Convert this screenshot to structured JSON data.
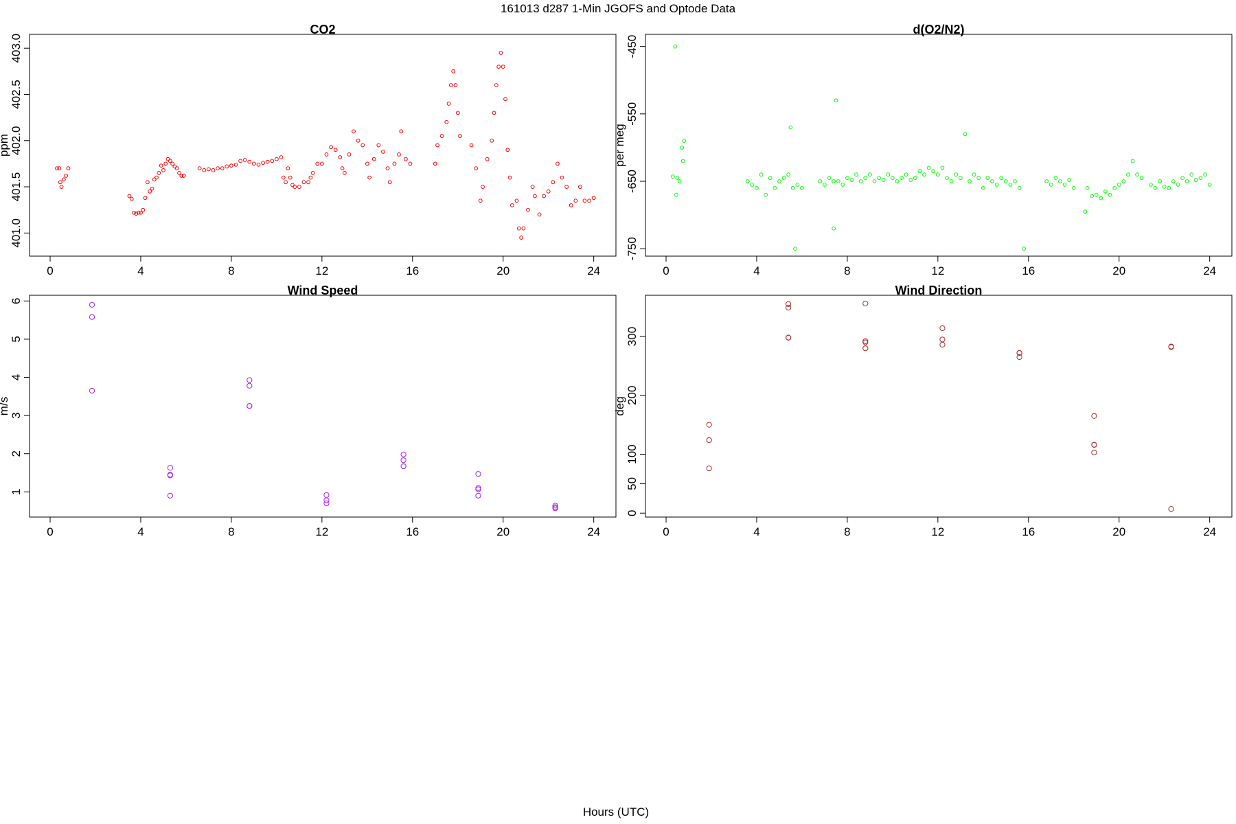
{
  "title": "161013   d287   1-Min  JGOFS and Optode Data",
  "xlabel": "Hours (UTC)",
  "chart_data": [
    {
      "type": "scatter",
      "title": "CO2",
      "ylabel": "ppm",
      "color": "#ff0000",
      "xlim": [
        -0.91,
        24.98
      ],
      "ylim": [
        400.75,
        403.15
      ],
      "xticks": [
        0,
        4,
        8,
        12,
        16,
        20,
        24
      ],
      "yticks": [
        {
          "value": 401,
          "label": "401.0"
        },
        401.5,
        {
          "value": 402,
          "label": "402.0"
        },
        402.5,
        {
          "value": 403,
          "label": "403.0"
        }
      ],
      "x": [
        0.3,
        0.4,
        0.45,
        0.5,
        0.6,
        0.7,
        0.8,
        3.5,
        3.6,
        3.7,
        3.8,
        3.9,
        4.0,
        4.1,
        4.2,
        4.3,
        4.4,
        4.5,
        4.6,
        4.7,
        4.8,
        4.9,
        5.0,
        5.1,
        5.2,
        5.3,
        5.4,
        5.5,
        5.6,
        5.7,
        5.8,
        5.9,
        6.6,
        6.8,
        7.0,
        7.2,
        7.4,
        7.6,
        7.8,
        8.0,
        8.2,
        8.4,
        8.6,
        8.8,
        9.0,
        9.2,
        9.4,
        9.6,
        9.8,
        10.0,
        10.2,
        10.3,
        10.4,
        10.5,
        10.6,
        10.7,
        10.8,
        11.0,
        11.2,
        11.4,
        11.5,
        11.6,
        11.8,
        12.0,
        12.2,
        12.4,
        12.6,
        12.8,
        12.9,
        13.0,
        13.2,
        13.4,
        13.6,
        13.8,
        14.0,
        14.1,
        14.3,
        14.5,
        14.7,
        14.9,
        15.0,
        15.2,
        15.4,
        15.5,
        15.7,
        15.9,
        17.0,
        17.1,
        17.3,
        17.5,
        17.6,
        17.7,
        17.8,
        17.9,
        18.0,
        18.1,
        18.6,
        18.8,
        19.0,
        19.1,
        19.3,
        19.5,
        19.6,
        19.7,
        19.8,
        19.9,
        20.0,
        20.1,
        20.2,
        20.3,
        20.4,
        20.6,
        20.7,
        20.8,
        20.9,
        21.1,
        21.3,
        21.4,
        21.6,
        21.8,
        22.0,
        22.2,
        22.4,
        22.6,
        22.8,
        23.0,
        23.2,
        23.4,
        23.6,
        23.8,
        24.0
      ],
      "values": [
        401.7,
        401.7,
        401.55,
        401.5,
        401.58,
        401.62,
        401.7,
        401.4,
        401.37,
        401.22,
        401.21,
        401.22,
        401.22,
        401.25,
        401.38,
        401.55,
        401.45,
        401.48,
        401.58,
        401.6,
        401.65,
        401.73,
        401.68,
        401.75,
        401.8,
        401.78,
        401.75,
        401.72,
        401.7,
        401.65,
        401.62,
        401.62,
        401.7,
        401.68,
        401.69,
        401.68,
        401.7,
        401.7,
        401.72,
        401.73,
        401.74,
        401.78,
        401.79,
        401.77,
        401.75,
        401.74,
        401.76,
        401.77,
        401.78,
        401.8,
        401.82,
        401.6,
        401.55,
        401.7,
        401.6,
        401.52,
        401.5,
        401.5,
        401.55,
        401.55,
        401.6,
        401.65,
        401.75,
        401.75,
        401.85,
        401.93,
        401.9,
        401.82,
        401.7,
        401.65,
        401.85,
        402.1,
        402.0,
        401.95,
        401.75,
        401.6,
        401.8,
        401.95,
        401.88,
        401.7,
        401.55,
        401.75,
        401.85,
        402.1,
        401.8,
        401.75,
        401.75,
        401.95,
        402.05,
        402.2,
        402.4,
        402.6,
        402.75,
        402.6,
        402.3,
        402.05,
        401.95,
        401.7,
        401.35,
        401.5,
        401.8,
        402.0,
        402.3,
        402.6,
        402.8,
        402.95,
        402.8,
        402.45,
        401.9,
        401.6,
        401.3,
        401.35,
        401.05,
        400.95,
        401.05,
        401.25,
        401.5,
        401.4,
        401.2,
        401.4,
        401.45,
        401.55,
        401.75,
        401.6,
        401.5,
        401.3,
        401.35,
        401.5,
        401.35,
        401.35,
        401.38
      ]
    },
    {
      "type": "scatter",
      "title": "d(O2/N2)",
      "ylabel": "per meg",
      "color": "#00ff00",
      "xlim": [
        -0.91,
        24.98
      ],
      "ylim": [
        -761,
        -432
      ],
      "xticks": [
        0,
        4,
        8,
        12,
        16,
        20,
        24
      ],
      "yticks": [
        -750,
        -650,
        -550,
        -450
      ],
      "x": [
        0.3,
        0.4,
        0.45,
        0.5,
        0.6,
        0.7,
        0.75,
        0.8,
        3.6,
        3.8,
        4.0,
        4.2,
        4.4,
        4.6,
        4.8,
        5.0,
        5.2,
        5.4,
        5.5,
        5.6,
        5.7,
        5.8,
        6.0,
        6.8,
        7.0,
        7.2,
        7.4,
        7.4,
        7.5,
        7.6,
        7.8,
        8.0,
        8.2,
        8.4,
        8.6,
        8.8,
        9.0,
        9.2,
        9.4,
        9.6,
        9.8,
        10.0,
        10.2,
        10.4,
        10.6,
        10.8,
        11.0,
        11.2,
        11.4,
        11.6,
        11.8,
        12.0,
        12.2,
        12.4,
        12.6,
        12.8,
        13.0,
        13.2,
        13.4,
        13.6,
        13.8,
        14.0,
        14.2,
        14.4,
        14.6,
        14.8,
        15.0,
        15.2,
        15.4,
        15.6,
        15.8,
        16.8,
        17.0,
        17.2,
        17.4,
        17.6,
        17.8,
        18.0,
        18.5,
        18.6,
        18.8,
        19.0,
        19.2,
        19.4,
        19.6,
        19.8,
        20.0,
        20.2,
        20.4,
        20.6,
        20.8,
        21.0,
        21.4,
        21.6,
        21.8,
        22.0,
        22.2,
        22.4,
        22.6,
        22.8,
        23.0,
        23.2,
        23.4,
        23.6,
        23.8,
        24.0
      ],
      "values": [
        -643,
        -450,
        -670,
        -645,
        -650,
        -600,
        -620,
        -590,
        -650,
        -655,
        -660,
        -640,
        -670,
        -645,
        -660,
        -650,
        -645,
        -640,
        -570,
        -660,
        -750,
        -655,
        -660,
        -650,
        -655,
        -645,
        -650,
        -720,
        -530,
        -650,
        -655,
        -645,
        -648,
        -640,
        -650,
        -645,
        -640,
        -650,
        -645,
        -648,
        -640,
        -645,
        -650,
        -645,
        -640,
        -648,
        -645,
        -635,
        -640,
        -630,
        -635,
        -640,
        -630,
        -645,
        -650,
        -640,
        -645,
        -580,
        -650,
        -640,
        -645,
        -660,
        -645,
        -650,
        -655,
        -645,
        -650,
        -655,
        -650,
        -660,
        -750,
        -650,
        -655,
        -645,
        -650,
        -655,
        -648,
        -660,
        -695,
        -660,
        -672,
        -670,
        -675,
        -665,
        -670,
        -660,
        -655,
        -650,
        -640,
        -620,
        -640,
        -645,
        -655,
        -660,
        -650,
        -658,
        -660,
        -650,
        -655,
        -645,
        -650,
        -640,
        -648,
        -645,
        -640,
        -655
      ]
    },
    {
      "type": "scatter",
      "title": "Wind Speed",
      "ylabel": "m/s",
      "color": "#a020f0",
      "xlim": [
        -0.91,
        24.98
      ],
      "ylim": [
        0.34,
        6.15
      ],
      "xticks": [
        0,
        4,
        8,
        12,
        16,
        20,
        24
      ],
      "yticks": [
        1,
        2,
        3,
        4,
        5,
        6
      ],
      "x": [
        1.85,
        1.85,
        1.85,
        5.3,
        5.3,
        5.3,
        5.3,
        8.8,
        8.8,
        8.8,
        8.8,
        12.2,
        12.2,
        12.2,
        15.6,
        15.6,
        15.6,
        18.9,
        18.9,
        18.9,
        18.9,
        22.3,
        22.3,
        22.3
      ],
      "values": [
        5.9,
        5.58,
        3.65,
        1.63,
        1.45,
        1.43,
        0.9,
        3.93,
        3.78,
        3.25,
        3.25,
        0.92,
        0.78,
        0.7,
        1.98,
        1.83,
        1.67,
        1.47,
        1.1,
        1.07,
        0.9,
        0.64,
        0.6,
        0.57
      ]
    },
    {
      "type": "scatter",
      "title": "Wind Direction",
      "ylabel": "deg",
      "color": "#a52a2a",
      "xlim": [
        -0.91,
        24.98
      ],
      "ylim": [
        -6.7,
        370
      ],
      "xticks": [
        0,
        4,
        8,
        12,
        16,
        20,
        24
      ],
      "yticks": [
        0,
        50,
        100,
        200,
        300
      ],
      "x": [
        1.9,
        1.9,
        1.9,
        5.4,
        5.4,
        5.4,
        5.4,
        8.8,
        8.8,
        8.8,
        8.8,
        12.2,
        12.2,
        12.2,
        15.6,
        15.6,
        15.6,
        18.9,
        18.9,
        18.9,
        18.9,
        22.3,
        22.3,
        22.3
      ],
      "values": [
        150,
        124,
        76,
        355,
        349,
        298,
        298,
        356,
        292,
        290,
        280,
        314,
        295,
        286,
        272,
        272,
        265,
        165,
        116,
        116,
        103,
        283,
        282,
        7
      ]
    }
  ]
}
